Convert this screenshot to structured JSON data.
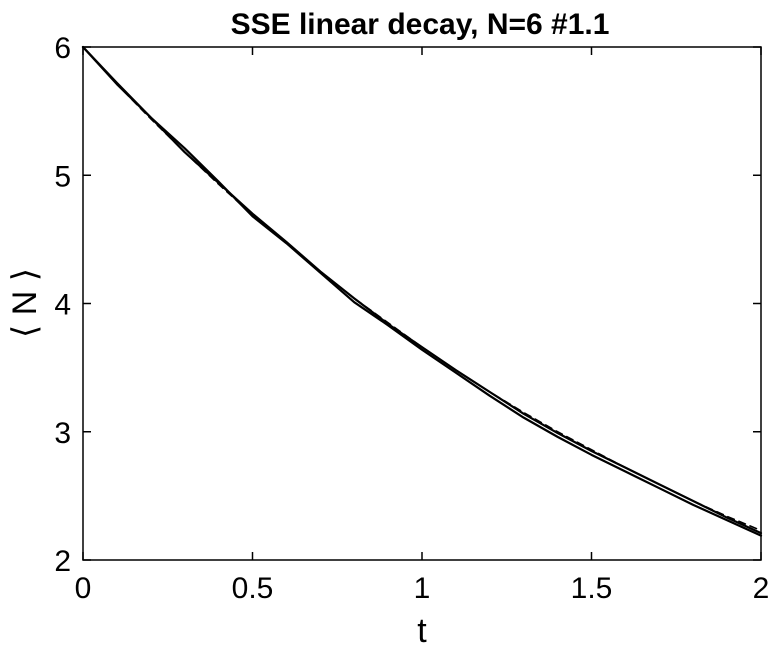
{
  "chart_data": {
    "type": "line",
    "title": "SSE linear decay, N=6 #1.1",
    "xlabel": "t",
    "ylabel": "⟨ N ⟩",
    "xlim": [
      0,
      2
    ],
    "ylim": [
      2,
      6
    ],
    "xticks": [
      0,
      0.5,
      1,
      1.5,
      2
    ],
    "xtick_labels": [
      "0",
      "0.5",
      "1",
      "1.5",
      "2"
    ],
    "yticks": [
      2,
      3,
      4,
      5,
      6
    ],
    "ytick_labels": [
      "2",
      "3",
      "4",
      "5",
      "6"
    ],
    "grid": false,
    "legend": "none",
    "series": [
      {
        "style": "solid",
        "color": "#000000",
        "x": [
          0,
          0.1,
          0.2,
          0.3,
          0.4,
          0.5,
          0.6,
          0.7,
          0.8,
          0.9,
          1.0,
          1.1,
          1.2,
          1.3,
          1.4,
          1.5,
          1.6,
          1.7,
          1.8,
          1.9,
          2.0
        ],
        "values": [
          6.0,
          5.71,
          5.45,
          5.18,
          4.94,
          4.7,
          4.48,
          4.25,
          4.04,
          3.84,
          3.66,
          3.48,
          3.31,
          3.14,
          2.99,
          2.85,
          2.72,
          2.59,
          2.46,
          2.33,
          2.21
        ]
      },
      {
        "style": "solid",
        "color": "#000000",
        "x": [
          0,
          0.1,
          0.2,
          0.3,
          0.4,
          0.5,
          0.6,
          0.7,
          0.8,
          0.9,
          1.0,
          1.1,
          1.2,
          1.3,
          1.4,
          1.5,
          1.6,
          1.7,
          1.8,
          1.9,
          2.0
        ],
        "values": [
          6.0,
          5.72,
          5.45,
          5.21,
          4.95,
          4.68,
          4.47,
          4.24,
          4.01,
          3.83,
          3.64,
          3.46,
          3.28,
          3.11,
          2.96,
          2.82,
          2.69,
          2.56,
          2.43,
          2.31,
          2.19
        ]
      },
      {
        "style": "dashed",
        "color": "#000000",
        "x": [
          0,
          0.1,
          0.2,
          0.3,
          0.4,
          0.5,
          0.6,
          0.7,
          0.8,
          0.9,
          1.0,
          1.1,
          1.2,
          1.3,
          1.4,
          1.5,
          1.6,
          1.7,
          1.8,
          1.9,
          2.0
        ],
        "values": [
          6.0,
          5.71,
          5.44,
          5.18,
          4.93,
          4.69,
          4.47,
          4.25,
          4.04,
          3.85,
          3.66,
          3.48,
          3.31,
          3.15,
          3.0,
          2.86,
          2.72,
          2.59,
          2.46,
          2.34,
          2.23
        ]
      }
    ]
  }
}
